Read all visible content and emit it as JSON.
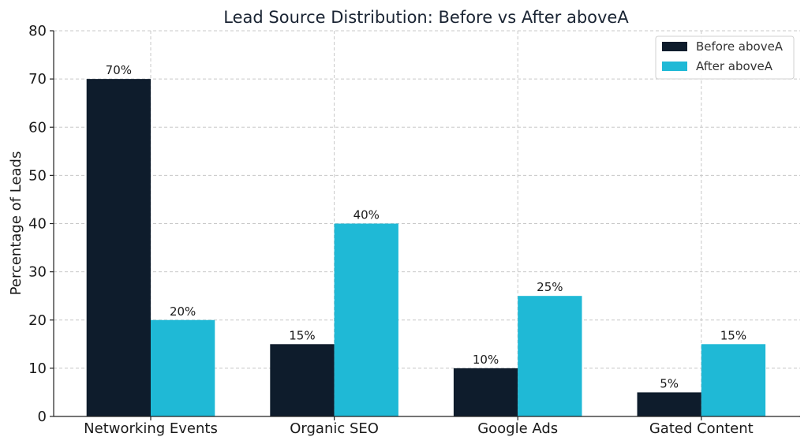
{
  "chart_data": {
    "type": "bar",
    "title": "Lead Source Distribution: Before vs After aboveA",
    "xlabel": "",
    "ylabel": "Percentage of Leads",
    "categories": [
      "Networking Events",
      "Organic SEO",
      "Google Ads",
      "Gated Content"
    ],
    "series": [
      {
        "name": "Before aboveA",
        "color": "#0e1c2c",
        "values": [
          70,
          15,
          10,
          5
        ],
        "labels": [
          "70%",
          "15%",
          "10%",
          "5%"
        ]
      },
      {
        "name": "After aboveA",
        "color": "#1fb9d6",
        "values": [
          20,
          40,
          25,
          15
        ],
        "labels": [
          "20%",
          "40%",
          "25%",
          "15%"
        ]
      }
    ],
    "ylim": [
      0,
      80
    ],
    "yticks": [
      0,
      10,
      20,
      30,
      40,
      50,
      60,
      70,
      80
    ],
    "grid": true,
    "legend_position": "top-right"
  }
}
